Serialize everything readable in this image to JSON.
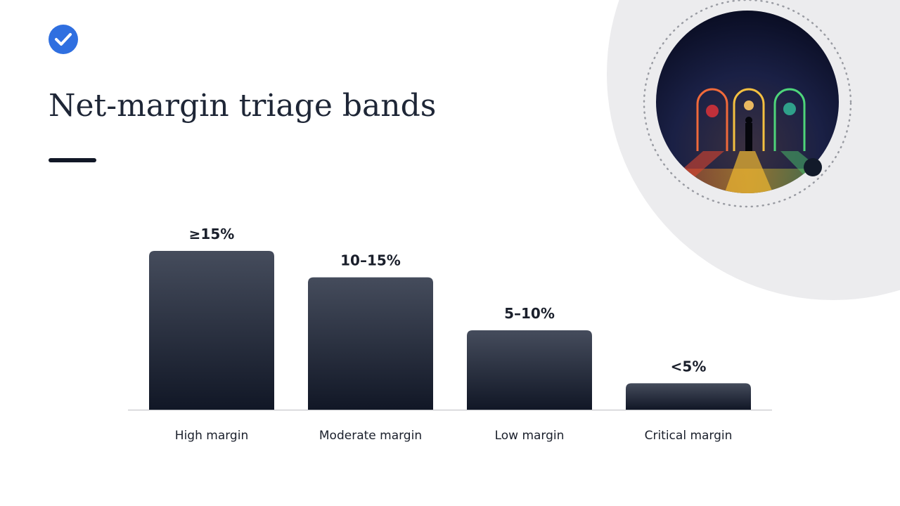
{
  "slide": {
    "title": "Net-margin triage bands"
  },
  "chart_data": {
    "type": "bar",
    "categories": [
      "High margin",
      "Moderate margin",
      "Low margin",
      "Critical margin"
    ],
    "values": [
      15,
      12.5,
      7.5,
      2.5
    ],
    "value_labels": [
      "≥15%",
      "10–15%",
      "5–10%",
      "<5%"
    ],
    "ylim": [
      0,
      15
    ]
  }
}
